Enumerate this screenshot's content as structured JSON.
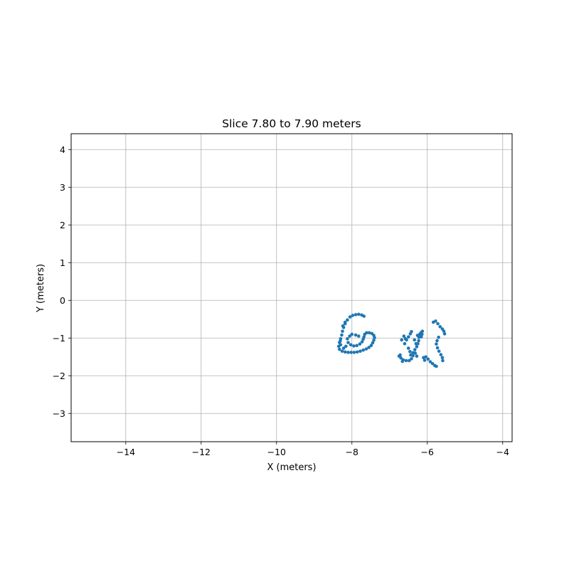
{
  "chart_data": {
    "type": "scatter",
    "title": "Slice 7.80 to 7.90 meters",
    "xlabel": "X (meters)",
    "ylabel": "Y (meters)",
    "xlim": [
      -15.45,
      -3.75
    ],
    "ylim": [
      -3.75,
      4.42
    ],
    "xticks": [
      -14,
      -12,
      -10,
      -8,
      -6,
      -4
    ],
    "yticks": [
      -3,
      -2,
      -1,
      0,
      1,
      2,
      3,
      4
    ],
    "xtick_labels": [
      "−14",
      "−12",
      "−10",
      "−8",
      "−6",
      "−4"
    ],
    "ytick_labels": [
      "−3",
      "−2",
      "−1",
      "0",
      "1",
      "2",
      "3",
      "4"
    ],
    "grid": true,
    "marker_color": "#1f77b4",
    "series": [
      {
        "name": "",
        "points": [
          [
            -7.9,
            -0.38
          ],
          [
            -7.82,
            -0.37
          ],
          [
            -7.74,
            -0.39
          ],
          [
            -7.68,
            -0.42
          ],
          [
            -7.98,
            -0.4
          ],
          [
            -8.05,
            -0.44
          ],
          [
            -8.12,
            -0.52
          ],
          [
            -8.18,
            -0.62
          ],
          [
            -8.22,
            -0.72
          ],
          [
            -8.25,
            -0.82
          ],
          [
            -8.27,
            -0.92
          ],
          [
            -8.3,
            -1.02
          ],
          [
            -8.33,
            -1.12
          ],
          [
            -8.35,
            -1.22
          ],
          [
            -8.33,
            -1.3
          ],
          [
            -8.26,
            -1.35
          ],
          [
            -8.18,
            -1.37
          ],
          [
            -8.1,
            -1.38
          ],
          [
            -8.02,
            -1.38
          ],
          [
            -7.94,
            -1.38
          ],
          [
            -7.86,
            -1.37
          ],
          [
            -7.78,
            -1.35
          ],
          [
            -7.7,
            -1.32
          ],
          [
            -7.62,
            -1.29
          ],
          [
            -7.55,
            -1.25
          ],
          [
            -7.49,
            -1.2
          ],
          [
            -7.45,
            -1.13
          ],
          [
            -7.42,
            -1.06
          ],
          [
            -7.4,
            -0.99
          ],
          [
            -7.42,
            -0.93
          ],
          [
            -7.47,
            -0.88
          ],
          [
            -7.54,
            -0.86
          ],
          [
            -7.61,
            -0.86
          ],
          [
            -7.66,
            -0.9
          ],
          [
            -8.18,
            -0.58
          ],
          [
            -8.24,
            -0.68
          ],
          [
            -8.31,
            -1.08
          ],
          [
            -8.3,
            -1.18
          ],
          [
            -8.0,
            -0.9
          ],
          [
            -8.06,
            -0.95
          ],
          [
            -8.12,
            -1.02
          ],
          [
            -8.1,
            -1.12
          ],
          [
            -8.03,
            -1.18
          ],
          [
            -7.95,
            -1.21
          ],
          [
            -7.87,
            -1.2
          ],
          [
            -7.79,
            -1.16
          ],
          [
            -7.73,
            -1.1
          ],
          [
            -7.7,
            -1.03
          ],
          [
            -7.68,
            -0.97
          ],
          [
            -7.9,
            -0.92
          ],
          [
            -7.82,
            -0.95
          ],
          [
            -8.16,
            -1.22
          ],
          [
            -8.22,
            -1.27
          ],
          [
            -6.6,
            -1.15
          ],
          [
            -6.55,
            -1.05
          ],
          [
            -6.5,
            -0.97
          ],
          [
            -6.45,
            -0.89
          ],
          [
            -6.42,
            -0.83
          ],
          [
            -6.68,
            -1.05
          ],
          [
            -6.62,
            -0.95
          ],
          [
            -6.58,
            -1.02
          ],
          [
            -6.72,
            -1.45
          ],
          [
            -6.7,
            -1.53
          ],
          [
            -6.64,
            -1.58
          ],
          [
            -6.56,
            -1.6
          ],
          [
            -6.48,
            -1.6
          ],
          [
            -6.42,
            -1.55
          ],
          [
            -6.38,
            -1.47
          ],
          [
            -6.38,
            -1.39
          ],
          [
            -6.33,
            -1.31
          ],
          [
            -6.28,
            -1.23
          ],
          [
            -6.25,
            -1.15
          ],
          [
            -6.23,
            -1.07
          ],
          [
            -6.22,
            -0.98
          ],
          [
            -6.2,
            -0.9
          ],
          [
            -6.17,
            -0.86
          ],
          [
            -6.14,
            -0.9
          ],
          [
            -6.16,
            -0.97
          ],
          [
            -6.5,
            -1.27
          ],
          [
            -6.46,
            -1.36
          ],
          [
            -6.44,
            -1.45
          ],
          [
            -6.32,
            -1.4
          ],
          [
            -6.28,
            -1.48
          ],
          [
            -6.3,
            -1.15
          ],
          [
            -6.1,
            -1.52
          ],
          [
            -6.04,
            -1.5
          ],
          [
            -5.98,
            -1.56
          ],
          [
            -5.92,
            -1.63
          ],
          [
            -5.86,
            -1.68
          ],
          [
            -5.8,
            -1.73
          ],
          [
            -5.76,
            -1.75
          ],
          [
            -6.07,
            -1.59
          ],
          [
            -5.78,
            -0.55
          ],
          [
            -5.72,
            -0.62
          ],
          [
            -5.66,
            -0.7
          ],
          [
            -5.6,
            -0.76
          ],
          [
            -5.56,
            -0.82
          ],
          [
            -5.54,
            -0.89
          ],
          [
            -5.84,
            -0.58
          ],
          [
            -5.7,
            -0.98
          ],
          [
            -5.74,
            -1.07
          ],
          [
            -5.76,
            -1.16
          ],
          [
            -5.73,
            -1.26
          ],
          [
            -5.69,
            -1.35
          ],
          [
            -5.64,
            -1.44
          ],
          [
            -5.6,
            -1.52
          ],
          [
            -5.59,
            -1.6
          ],
          [
            -6.75,
            -1.48
          ],
          [
            -6.66,
            -1.62
          ],
          [
            -6.34,
            -1.05
          ],
          [
            -6.26,
            -0.93
          ],
          [
            -6.13,
            -0.82
          ]
        ]
      }
    ]
  }
}
